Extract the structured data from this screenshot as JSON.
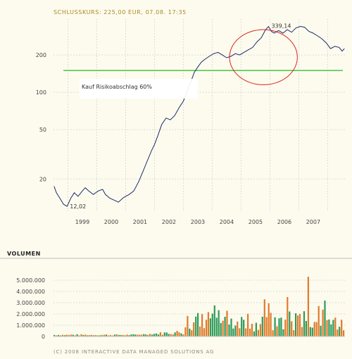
{
  "header": "SCHLUSSKURS: 225,00 EUR, 07.08. 17:35",
  "volume_title": "VOLUMEN",
  "copyright": "(C) 2008 INTERACTIVE DATA MANAGED SOLUTIONS AG",
  "chart_data": [
    {
      "type": "line",
      "yscale": "log",
      "ylim": [
        11,
        390
      ],
      "xlim": [
        1998.5,
        2008.6
      ],
      "yticks": [
        20,
        50,
        100,
        200
      ],
      "ytick_labels": [
        "20",
        "50",
        "100",
        "200"
      ],
      "xtick_labels": [
        "1999",
        "2000",
        "2001",
        "2002",
        "2003",
        "2004",
        "2005",
        "2006",
        "2007"
      ],
      "grid": true,
      "series": [
        {
          "color": "#1a2a6c",
          "x": [
            1998.52,
            1998.6,
            1998.72,
            1998.85,
            1998.97,
            1999.1,
            1999.22,
            1999.35,
            1999.5,
            1999.6,
            1999.72,
            1999.88,
            2000.05,
            2000.2,
            2000.3,
            2000.45,
            2000.6,
            2000.75,
            2000.9,
            2001.0,
            2001.12,
            2001.28,
            2001.45,
            2001.6,
            2001.75,
            2001.9,
            2002.0,
            2002.12,
            2002.25,
            2002.4,
            2002.55,
            2002.7,
            2002.85,
            2003.0,
            2003.12,
            2003.25,
            2003.38,
            2003.5,
            2003.62,
            2003.75,
            2003.9,
            2004.05,
            2004.2,
            2004.35,
            2004.5,
            2004.65,
            2004.8,
            2004.95,
            2005.1,
            2005.25,
            2005.4,
            2005.55,
            2005.7,
            2005.85,
            2005.95,
            2006.05,
            2006.15,
            2006.3,
            2006.45,
            2006.6,
            2006.75,
            2006.9,
            2007.05,
            2007.2,
            2007.35,
            2007.5,
            2007.65,
            2007.8,
            2007.95,
            2008.1,
            2008.25,
            2008.4,
            2008.5,
            2008.58
          ],
          "y": [
            17.5,
            15.5,
            14,
            12.5,
            12.02,
            14,
            15.5,
            14.5,
            16,
            17,
            16,
            15,
            16,
            16.5,
            15,
            14,
            13.5,
            13,
            14,
            14.5,
            15,
            16,
            19,
            23,
            28,
            34,
            38,
            45,
            55,
            62,
            60,
            65,
            75,
            85,
            100,
            120,
            145,
            160,
            175,
            185,
            195,
            205,
            210,
            200,
            190,
            195,
            205,
            200,
            210,
            220,
            230,
            255,
            275,
            320,
            339.14,
            310,
            300,
            315,
            300,
            320,
            305,
            330,
            340,
            335,
            310,
            300,
            285,
            270,
            250,
            225,
            235,
            230,
            215,
            225
          ]
        }
      ],
      "annotations": [
        {
          "text": "339,14"
        },
        {
          "text": "12,02"
        },
        {
          "text": "Kauf Risikoabschlag 60%",
          "color": "#22bb22",
          "value": 150
        },
        {
          "type": "ellipse",
          "color": "#dd2222",
          "x_range": [
            2004.6,
            2006.95
          ],
          "y_range": [
            115,
            320
          ]
        }
      ]
    },
    {
      "type": "bar",
      "title": "VOLUMEN",
      "ylim": [
        0,
        5500000
      ],
      "yticks": [
        0,
        1000000,
        2000000,
        3000000,
        4000000,
        5000000
      ],
      "ytick_labels": [
        "0",
        "1.000.000",
        "2.000.000",
        "3.000.000",
        "4.000.000",
        "5.000.000"
      ],
      "colors": {
        "up": "#2e9a5a",
        "down": "#e07b2b"
      },
      "x_start": 1998.52,
      "x_end": 2008.58,
      "values": [
        150000,
        180000,
        160000,
        140000,
        200000,
        170000,
        150000,
        160000,
        180000,
        140000,
        220000,
        150000,
        160000,
        200000,
        180000,
        170000,
        150000,
        160000,
        300000,
        150000,
        160000,
        170000,
        180000,
        160000,
        150000,
        140000,
        160000,
        170000,
        180000,
        150000,
        160000,
        140000,
        150000,
        160000,
        170000,
        180000,
        190000,
        200000,
        210000,
        220000,
        200000,
        190000,
        210000,
        230000,
        250000,
        260000,
        280000,
        300000,
        320000,
        340000,
        360000,
        380000,
        400000,
        420000,
        440000,
        460000,
        480000,
        500000,
        520000,
        540000,
        560000,
        600000,
        650000,
        700000,
        750000,
        800000,
        850000,
        900000,
        950000,
        1000000,
        1100000,
        1200000,
        1300000,
        1400000,
        1500000,
        1600000,
        1700000,
        1800000,
        1900000,
        2000000,
        2100000,
        2200000,
        2300000,
        2400000,
        2500000,
        2600000,
        2700000,
        2800000,
        2900000,
        3000000,
        3100000,
        3200000,
        3300000,
        3400000,
        3500000,
        3600000,
        3700000,
        3800000,
        3900000,
        4000000,
        4100000,
        4200000,
        4300000,
        4400000,
        4500000,
        4600000,
        4700000,
        4800000,
        4900000,
        5000000
      ],
      "value_order": "mapped-by-script",
      "directions": "mixed"
    }
  ]
}
